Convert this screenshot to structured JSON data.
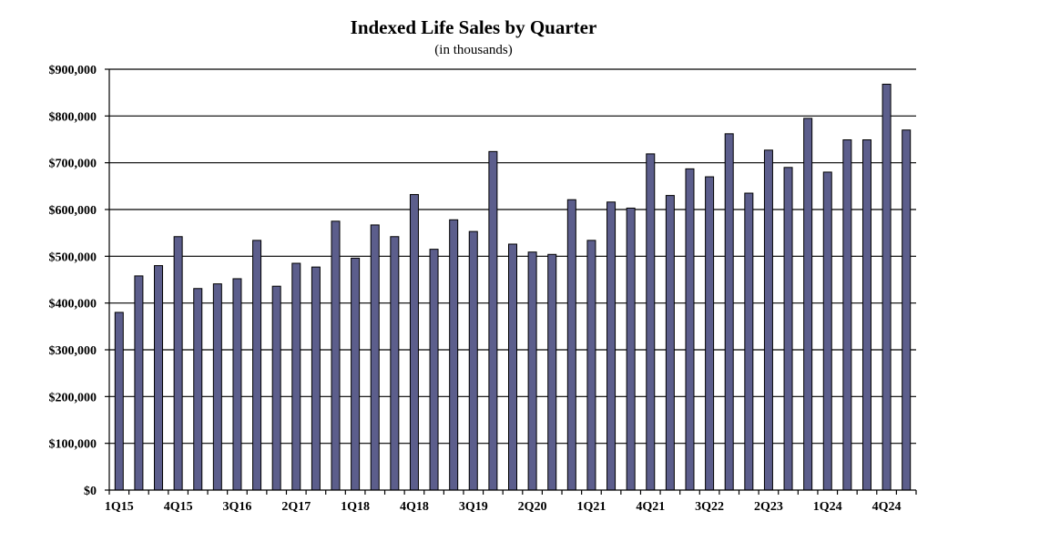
{
  "chart_data": {
    "type": "bar",
    "title": "Indexed Life Sales by Quarter",
    "subtitle": "(in thousands)",
    "xlabel": "",
    "ylabel": "",
    "ylim": [
      0,
      900000
    ],
    "grid": true,
    "bar_color": "#5c5e8c",
    "y_ticks": [
      {
        "value": 0,
        "label": "$0"
      },
      {
        "value": 100000,
        "label": "$100,000"
      },
      {
        "value": 200000,
        "label": "$200,000"
      },
      {
        "value": 300000,
        "label": "$300,000"
      },
      {
        "value": 400000,
        "label": "$400,000"
      },
      {
        "value": 500000,
        "label": "$500,000"
      },
      {
        "value": 600000,
        "label": "$600,000"
      },
      {
        "value": 700000,
        "label": "$700,000"
      },
      {
        "value": 800000,
        "label": "$800,000"
      },
      {
        "value": 900000,
        "label": "$900,000"
      }
    ],
    "categories": [
      "1Q15",
      "2Q15",
      "3Q15",
      "4Q15",
      "1Q16",
      "2Q16",
      "3Q16",
      "4Q16",
      "1Q17",
      "2Q17",
      "3Q17",
      "4Q17",
      "1Q18",
      "2Q18",
      "3Q18",
      "4Q18",
      "1Q19",
      "2Q19",
      "3Q19",
      "4Q19",
      "1Q20",
      "2Q20",
      "3Q20",
      "4Q20",
      "1Q21",
      "2Q21",
      "3Q21",
      "4Q21",
      "1Q22",
      "2Q22",
      "3Q22",
      "4Q22",
      "1Q23",
      "2Q23",
      "3Q23",
      "4Q23",
      "1Q24",
      "2Q24",
      "3Q24",
      "4Q24",
      "1Q25"
    ],
    "x_tick_labels": [
      "1Q15",
      "4Q15",
      "3Q16",
      "2Q17",
      "1Q18",
      "4Q18",
      "3Q19",
      "2Q20",
      "1Q21",
      "4Q21",
      "3Q22",
      "2Q23",
      "1Q24",
      "4Q24"
    ],
    "values": [
      380000,
      458000,
      480000,
      542000,
      431000,
      441000,
      452000,
      534000,
      436000,
      485000,
      477000,
      575000,
      496000,
      567000,
      542000,
      632000,
      515000,
      578000,
      553000,
      724000,
      526000,
      509000,
      504000,
      621000,
      534000,
      616000,
      603000,
      719000,
      630000,
      687000,
      670000,
      762000,
      635000,
      727000,
      690000,
      795000,
      680000,
      749000,
      749000,
      868000,
      770000
    ]
  }
}
